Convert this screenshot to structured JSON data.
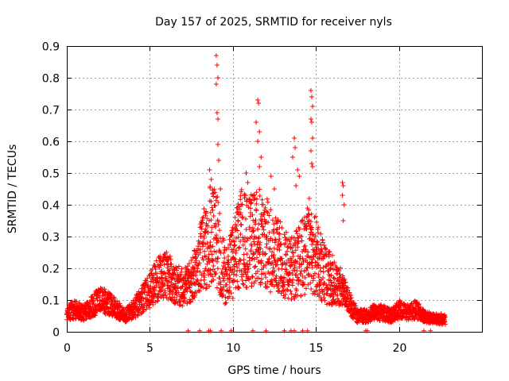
{
  "chart_data": {
    "type": "scatter",
    "title": "Day 157 of 2025, SRMTID for receiver nyls",
    "xlabel": "GPS time / hours",
    "ylabel": "SRMTID / TECUs",
    "xlim": [
      0,
      25
    ],
    "ylim": [
      0,
      0.9
    ],
    "grid": true,
    "marker": "+",
    "color": "#ff0000",
    "x_ticks": [
      0,
      5,
      10,
      15,
      20
    ],
    "x_tick_labels": [
      "0",
      "5",
      "10",
      "15",
      "20"
    ],
    "y_ticks": [
      0,
      0.1,
      0.2,
      0.3,
      0.4,
      0.5,
      0.6,
      0.7,
      0.8,
      0.9
    ],
    "y_tick_labels": [
      "0",
      "0.1",
      "0.2",
      "0.3",
      "0.4",
      "0.5",
      "0.6",
      "0.7",
      "0.8",
      "0.9"
    ],
    "profile": [
      [
        0.0,
        0.06
      ],
      [
        0.5,
        0.07
      ],
      [
        1.0,
        0.06
      ],
      [
        1.5,
        0.08
      ],
      [
        2.0,
        0.1
      ],
      [
        2.5,
        0.09
      ],
      [
        3.0,
        0.07
      ],
      [
        3.5,
        0.05
      ],
      [
        4.0,
        0.07
      ],
      [
        4.5,
        0.1
      ],
      [
        5.0,
        0.13
      ],
      [
        5.5,
        0.17
      ],
      [
        6.0,
        0.18
      ],
      [
        6.5,
        0.15
      ],
      [
        7.0,
        0.14
      ],
      [
        7.5,
        0.16
      ],
      [
        8.0,
        0.22
      ],
      [
        8.5,
        0.3
      ],
      [
        9.0,
        0.3
      ],
      [
        9.5,
        0.18
      ],
      [
        10.0,
        0.22
      ],
      [
        10.5,
        0.3
      ],
      [
        11.0,
        0.28
      ],
      [
        11.5,
        0.3
      ],
      [
        12.0,
        0.28
      ],
      [
        12.5,
        0.25
      ],
      [
        13.0,
        0.22
      ],
      [
        13.5,
        0.2
      ],
      [
        14.0,
        0.22
      ],
      [
        14.5,
        0.26
      ],
      [
        15.0,
        0.24
      ],
      [
        15.5,
        0.18
      ],
      [
        16.0,
        0.16
      ],
      [
        16.5,
        0.14
      ],
      [
        17.0,
        0.09
      ],
      [
        17.5,
        0.05
      ],
      [
        18.0,
        0.05
      ],
      [
        18.5,
        0.06
      ],
      [
        19.0,
        0.06
      ],
      [
        19.5,
        0.05
      ],
      [
        20.0,
        0.07
      ],
      [
        20.5,
        0.06
      ],
      [
        21.0,
        0.07
      ],
      [
        21.5,
        0.05
      ],
      [
        22.0,
        0.04
      ],
      [
        22.5,
        0.04
      ],
      [
        22.8,
        0.04
      ]
    ],
    "spikes": [
      [
        9.0,
        0.87
      ],
      [
        9.05,
        0.84
      ],
      [
        9.1,
        0.8
      ],
      [
        9.0,
        0.78
      ],
      [
        9.05,
        0.69
      ],
      [
        9.1,
        0.67
      ],
      [
        9.1,
        0.59
      ],
      [
        9.15,
        0.54
      ],
      [
        8.6,
        0.51
      ],
      [
        8.7,
        0.48
      ],
      [
        9.25,
        0.45
      ],
      [
        11.5,
        0.73
      ],
      [
        11.55,
        0.72
      ],
      [
        11.4,
        0.66
      ],
      [
        11.6,
        0.63
      ],
      [
        11.5,
        0.6
      ],
      [
        11.7,
        0.55
      ],
      [
        11.6,
        0.52
      ],
      [
        10.8,
        0.5
      ],
      [
        10.9,
        0.47
      ],
      [
        12.3,
        0.49
      ],
      [
        12.5,
        0.45
      ],
      [
        13.7,
        0.61
      ],
      [
        13.75,
        0.58
      ],
      [
        13.6,
        0.55
      ],
      [
        13.9,
        0.51
      ],
      [
        14.0,
        0.49
      ],
      [
        13.8,
        0.46
      ],
      [
        14.7,
        0.76
      ],
      [
        14.75,
        0.74
      ],
      [
        14.8,
        0.71
      ],
      [
        14.7,
        0.67
      ],
      [
        14.75,
        0.66
      ],
      [
        14.8,
        0.61
      ],
      [
        14.7,
        0.57
      ],
      [
        14.75,
        0.53
      ],
      [
        14.8,
        0.52
      ],
      [
        14.6,
        0.42
      ],
      [
        16.6,
        0.47
      ],
      [
        16.65,
        0.46
      ],
      [
        16.6,
        0.43
      ],
      [
        16.7,
        0.4
      ],
      [
        16.65,
        0.35
      ]
    ],
    "zero_markers": [
      7.3,
      8.0,
      8.55,
      8.65,
      9.3,
      9.9,
      11.2,
      12.0,
      13.1,
      13.5,
      13.7,
      14.2,
      14.5,
      18.0,
      18.1,
      21.5,
      21.9
    ]
  }
}
